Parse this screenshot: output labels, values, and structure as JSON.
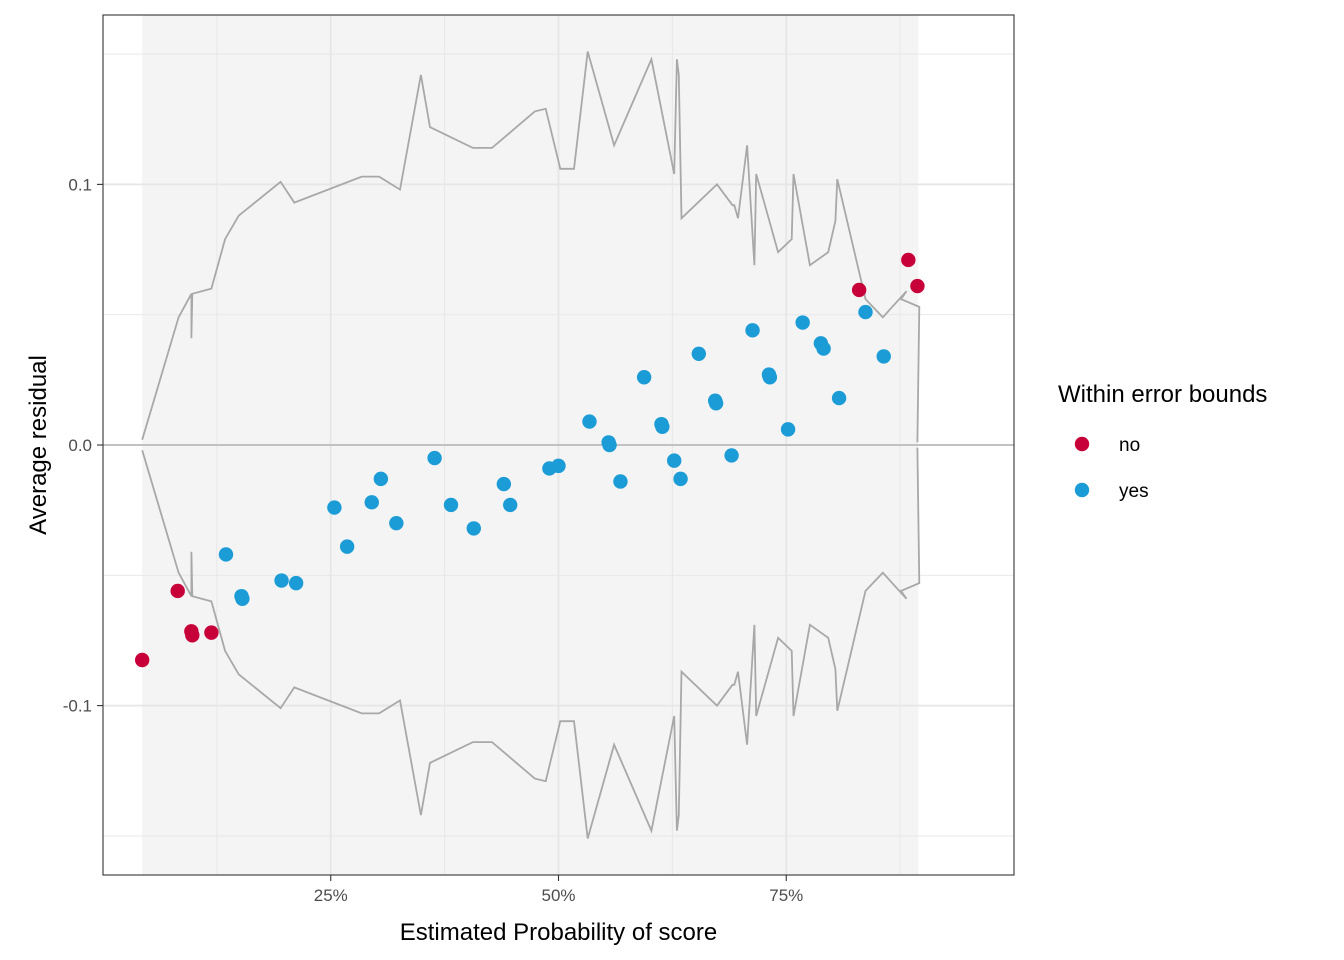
{
  "chart_data": {
    "type": "scatter",
    "title": "",
    "xlabel": "Estimated Probability of score",
    "ylabel": "Average residual",
    "xlim": [
      0.0,
      1.0
    ],
    "ylim": [
      -0.165,
      0.165
    ],
    "x_ticks": [
      {
        "value": 0.25,
        "label": "25%"
      },
      {
        "value": 0.5,
        "label": "50%"
      },
      {
        "value": 0.75,
        "label": "75%"
      }
    ],
    "y_ticks": [
      {
        "value": -0.1,
        "label": "-0.1"
      },
      {
        "value": 0.0,
        "label": "0.0"
      },
      {
        "value": 0.1,
        "label": "0.1"
      }
    ],
    "grid": true,
    "shaded_range_x": [
      0.043,
      0.895
    ],
    "colors": {
      "no": "#C8003A",
      "yes": "#1B9CD6",
      "bounds": "#A8A8A8",
      "zero_line": "#BBBBBB",
      "shade": "#F4F4F4",
      "grid": "#E6E6E6"
    },
    "legend": {
      "title": "Within error bounds",
      "position": "right",
      "entries": [
        {
          "label": "no",
          "color": "#C8003A"
        },
        {
          "label": "yes",
          "color": "#1B9CD6"
        }
      ]
    },
    "bounds": {
      "x": [
        0.043,
        0.083,
        0.097,
        0.097,
        0.098,
        0.119,
        0.134,
        0.149,
        0.195,
        0.21,
        0.284,
        0.303,
        0.326,
        0.349,
        0.359,
        0.406,
        0.427,
        0.474,
        0.486,
        0.502,
        0.515,
        0.517,
        0.532,
        0.561,
        0.602,
        0.627,
        0.63,
        0.632,
        0.635,
        0.674,
        0.691,
        0.693,
        0.697,
        0.707,
        0.715,
        0.717,
        0.741,
        0.756,
        0.758,
        0.776,
        0.796,
        0.804,
        0.806,
        0.837,
        0.856,
        0.882,
        0.876,
        0.896,
        0.894
      ],
      "upper": [
        0.002,
        0.049,
        0.058,
        0.041,
        0.058,
        0.06,
        0.079,
        0.088,
        0.101,
        0.093,
        0.103,
        0.103,
        0.098,
        0.142,
        0.122,
        0.114,
        0.114,
        0.128,
        0.129,
        0.106,
        0.106,
        0.106,
        0.151,
        0.115,
        0.148,
        0.104,
        0.148,
        0.142,
        0.087,
        0.1,
        0.092,
        0.092,
        0.087,
        0.115,
        0.069,
        0.104,
        0.074,
        0.079,
        0.104,
        0.069,
        0.074,
        0.086,
        0.102,
        0.056,
        0.049,
        0.059,
        0.056,
        0.053,
        0.001
      ],
      "lower": [
        -0.002,
        -0.049,
        -0.058,
        -0.041,
        -0.058,
        -0.06,
        -0.079,
        -0.088,
        -0.101,
        -0.093,
        -0.103,
        -0.103,
        -0.098,
        -0.142,
        -0.122,
        -0.114,
        -0.114,
        -0.128,
        -0.129,
        -0.106,
        -0.106,
        -0.106,
        -0.151,
        -0.115,
        -0.148,
        -0.104,
        -0.148,
        -0.142,
        -0.087,
        -0.1,
        -0.092,
        -0.092,
        -0.087,
        -0.115,
        -0.069,
        -0.104,
        -0.074,
        -0.079,
        -0.104,
        -0.069,
        -0.074,
        -0.086,
        -0.102,
        -0.056,
        -0.049,
        -0.059,
        -0.056,
        -0.053,
        -0.001
      ]
    },
    "series": [
      {
        "name": "no",
        "color": "#C8003A",
        "points": [
          {
            "x": 0.043,
            "y": -0.0825
          },
          {
            "x": 0.082,
            "y": -0.056
          },
          {
            "x": 0.097,
            "y": -0.0715
          },
          {
            "x": 0.098,
            "y": -0.073
          },
          {
            "x": 0.119,
            "y": -0.072
          },
          {
            "x": 0.83,
            "y": 0.0595
          },
          {
            "x": 0.884,
            "y": 0.071
          },
          {
            "x": 0.894,
            "y": 0.061
          }
        ]
      },
      {
        "name": "yes",
        "color": "#1B9CD6",
        "points": [
          {
            "x": 0.135,
            "y": -0.042
          },
          {
            "x": 0.152,
            "y": -0.058
          },
          {
            "x": 0.153,
            "y": -0.059
          },
          {
            "x": 0.196,
            "y": -0.052
          },
          {
            "x": 0.212,
            "y": -0.053
          },
          {
            "x": 0.254,
            "y": -0.024
          },
          {
            "x": 0.268,
            "y": -0.039
          },
          {
            "x": 0.295,
            "y": -0.022
          },
          {
            "x": 0.305,
            "y": -0.013
          },
          {
            "x": 0.322,
            "y": -0.03
          },
          {
            "x": 0.364,
            "y": -0.005
          },
          {
            "x": 0.382,
            "y": -0.023
          },
          {
            "x": 0.407,
            "y": -0.032
          },
          {
            "x": 0.44,
            "y": -0.015
          },
          {
            "x": 0.447,
            "y": -0.023
          },
          {
            "x": 0.49,
            "y": -0.009
          },
          {
            "x": 0.5,
            "y": -0.008
          },
          {
            "x": 0.534,
            "y": 0.009
          },
          {
            "x": 0.555,
            "y": 0.001
          },
          {
            "x": 0.556,
            "y": -0.0
          },
          {
            "x": 0.568,
            "y": -0.014
          },
          {
            "x": 0.594,
            "y": 0.026
          },
          {
            "x": 0.613,
            "y": 0.008
          },
          {
            "x": 0.614,
            "y": 0.007
          },
          {
            "x": 0.627,
            "y": -0.006
          },
          {
            "x": 0.634,
            "y": -0.013
          },
          {
            "x": 0.654,
            "y": 0.035
          },
          {
            "x": 0.672,
            "y": 0.017
          },
          {
            "x": 0.673,
            "y": 0.016
          },
          {
            "x": 0.69,
            "y": -0.004
          },
          {
            "x": 0.713,
            "y": 0.044
          },
          {
            "x": 0.731,
            "y": 0.027
          },
          {
            "x": 0.732,
            "y": 0.026
          },
          {
            "x": 0.752,
            "y": 0.006
          },
          {
            "x": 0.768,
            "y": 0.047
          },
          {
            "x": 0.788,
            "y": 0.039
          },
          {
            "x": 0.791,
            "y": 0.037
          },
          {
            "x": 0.808,
            "y": 0.018
          },
          {
            "x": 0.837,
            "y": 0.051
          },
          {
            "x": 0.857,
            "y": 0.034
          }
        ]
      }
    ]
  }
}
